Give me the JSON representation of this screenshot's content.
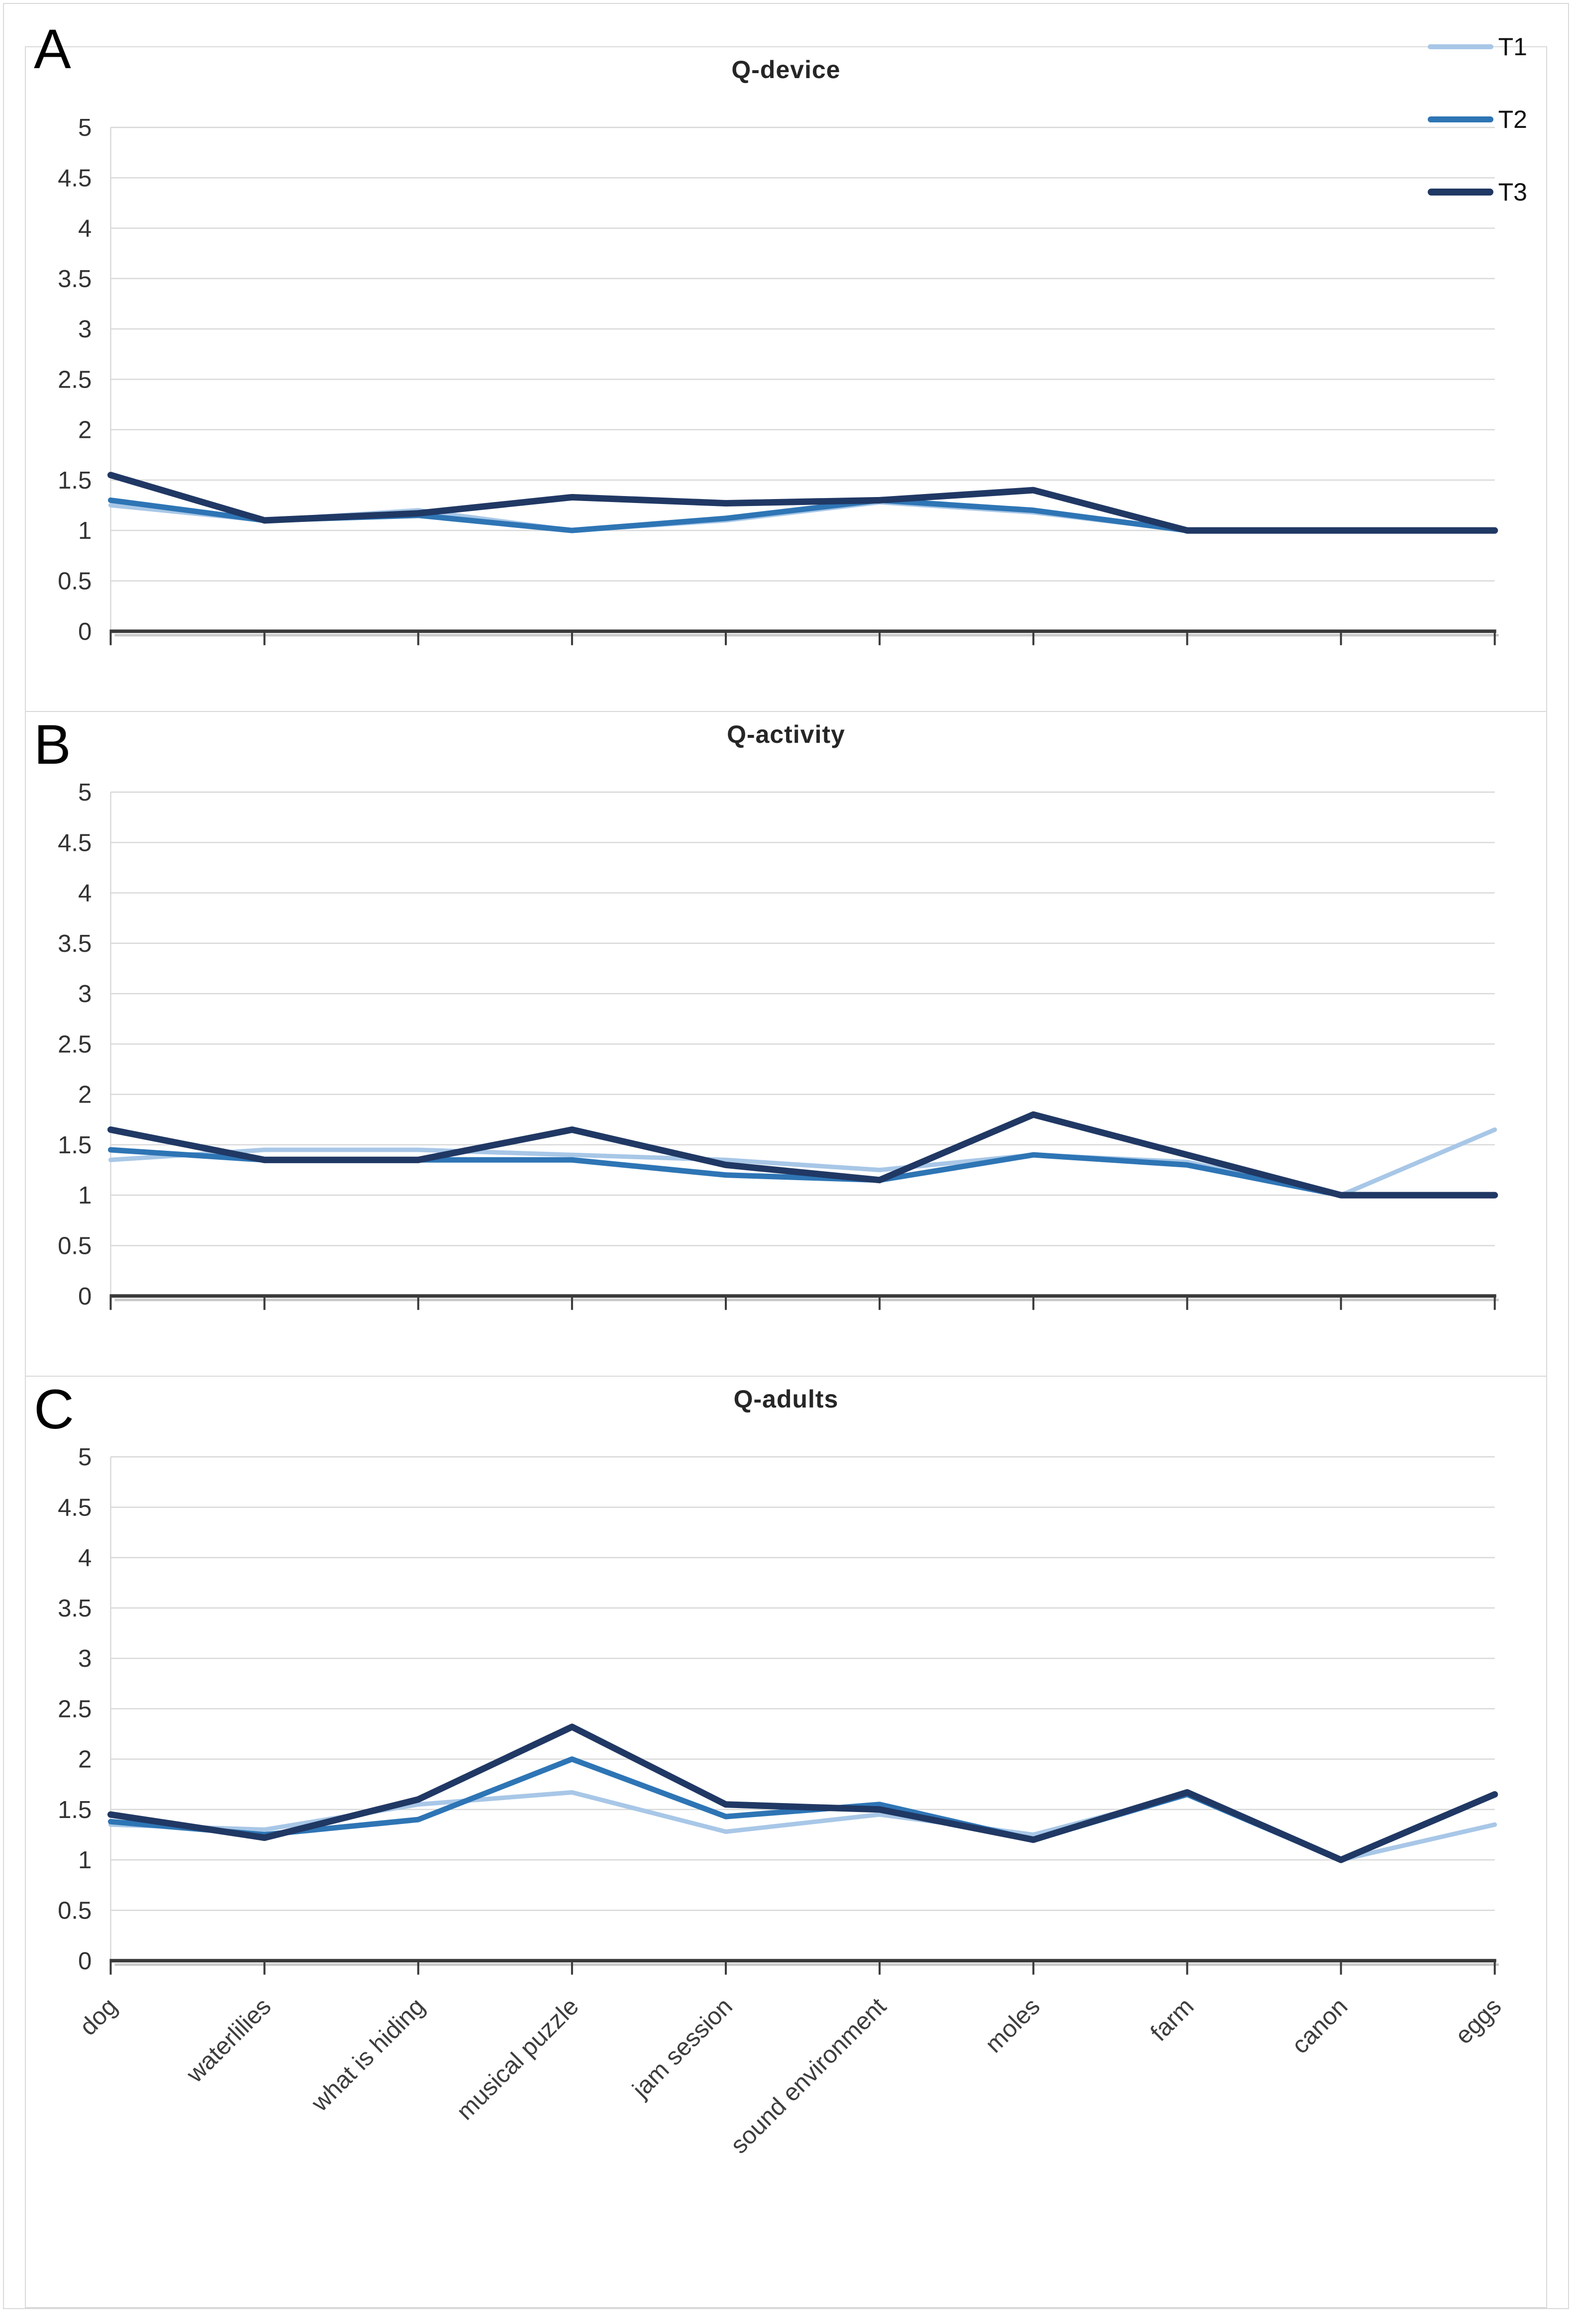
{
  "page": {
    "background": "#ffffff",
    "frame_color": "#d9d9d9"
  },
  "legend": {
    "position": "top-right-of-panel-A",
    "items": [
      {
        "label": "T1",
        "color": "#A8C7E7",
        "thickness": 10
      },
      {
        "label": "T2",
        "color": "#2E75B5",
        "thickness": 12
      },
      {
        "label": "T3",
        "color": "#203864",
        "thickness": 14
      }
    ]
  },
  "y_tick_labels": [
    "0",
    "0.5",
    "1",
    "1.5",
    "2",
    "2.5",
    "3",
    "3.5",
    "4",
    "4.5",
    "5"
  ],
  "chart_data": [
    {
      "type": "line",
      "panel_letter": "A",
      "title": "Q-device",
      "grid": true,
      "legend_position": "top-right",
      "ylim": [
        0,
        5
      ],
      "y_step": 0.5,
      "x_labels_shown": false,
      "categories": [
        "dog",
        "waterlilies",
        "what is hiding",
        "musical puzzle",
        "jam session",
        "sound environment",
        "moles",
        "farm",
        "canon",
        "eggs"
      ],
      "series": [
        {
          "name": "T1",
          "color": "#A8C7E7",
          "stroke_width": 9,
          "values": [
            1.25,
            1.1,
            1.2,
            1.0,
            1.1,
            1.28,
            1.18,
            1.0,
            1.0,
            1.0
          ]
        },
        {
          "name": "T2",
          "color": "#2E75B5",
          "stroke_width": 11,
          "values": [
            1.3,
            1.1,
            1.15,
            1.0,
            1.12,
            1.3,
            1.2,
            1.0,
            1.0,
            1.0
          ]
        },
        {
          "name": "T3",
          "color": "#203864",
          "stroke_width": 13,
          "values": [
            1.55,
            1.1,
            1.17,
            1.33,
            1.27,
            1.3,
            1.4,
            1.0,
            1.0,
            1.0
          ]
        }
      ]
    },
    {
      "type": "line",
      "panel_letter": "B",
      "title": "Q-activity",
      "grid": true,
      "legend_position": "none",
      "ylim": [
        0,
        5
      ],
      "y_step": 0.5,
      "x_labels_shown": false,
      "categories": [
        "dog",
        "waterlilies",
        "what is hiding",
        "musical puzzle",
        "jam session",
        "sound environment",
        "moles",
        "farm",
        "canon",
        "eggs"
      ],
      "series": [
        {
          "name": "T1",
          "color": "#A8C7E7",
          "stroke_width": 9,
          "values": [
            1.35,
            1.45,
            1.45,
            1.4,
            1.35,
            1.25,
            1.4,
            1.33,
            1.0,
            1.65
          ]
        },
        {
          "name": "T2",
          "color": "#2E75B5",
          "stroke_width": 11,
          "values": [
            1.45,
            1.35,
            1.35,
            1.35,
            1.2,
            1.15,
            1.4,
            1.3,
            1.0,
            1.0
          ]
        },
        {
          "name": "T3",
          "color": "#203864",
          "stroke_width": 13,
          "values": [
            1.65,
            1.35,
            1.35,
            1.65,
            1.3,
            1.15,
            1.8,
            1.4,
            1.0,
            1.0
          ]
        }
      ]
    },
    {
      "type": "line",
      "panel_letter": "C",
      "title": "Q-adults",
      "grid": true,
      "legend_position": "none",
      "ylim": [
        0,
        5
      ],
      "y_step": 0.5,
      "x_labels_shown": true,
      "categories": [
        "dog",
        "waterlilies",
        "what is hiding",
        "musical puzzle",
        "jam session",
        "sound environment",
        "moles",
        "farm",
        "canon",
        "eggs"
      ],
      "series": [
        {
          "name": "T1",
          "color": "#A8C7E7",
          "stroke_width": 9,
          "values": [
            1.35,
            1.3,
            1.55,
            1.67,
            1.28,
            1.45,
            1.25,
            1.65,
            1.0,
            1.35
          ]
        },
        {
          "name": "T2",
          "color": "#2E75B5",
          "stroke_width": 11,
          "values": [
            1.38,
            1.25,
            1.4,
            2.0,
            1.43,
            1.55,
            1.2,
            1.65,
            1.0,
            1.65
          ]
        },
        {
          "name": "T3",
          "color": "#203864",
          "stroke_width": 13,
          "values": [
            1.45,
            1.22,
            1.6,
            2.32,
            1.55,
            1.5,
            1.2,
            1.67,
            1.0,
            1.65
          ]
        }
      ]
    }
  ]
}
